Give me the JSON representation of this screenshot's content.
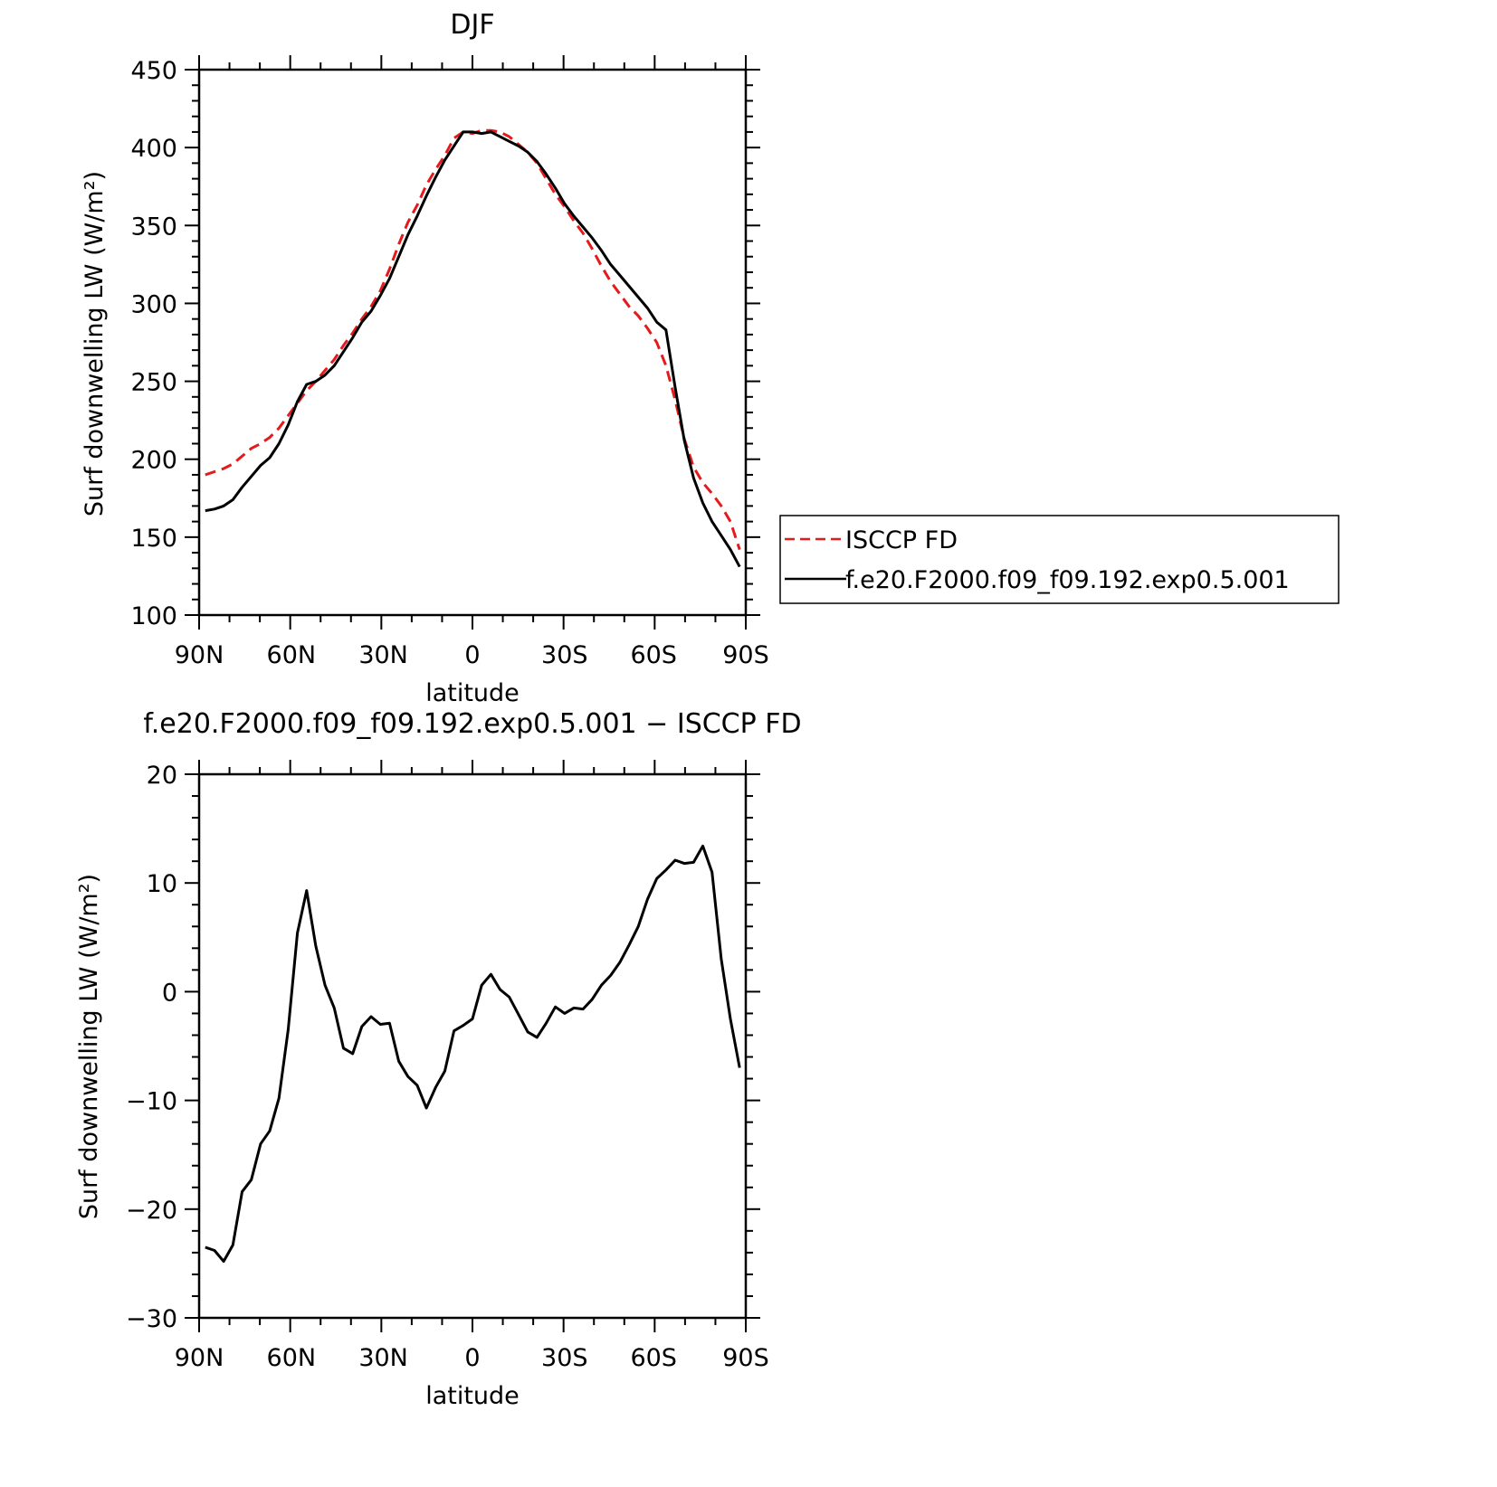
{
  "colors": {
    "isccp": "#e41a1c",
    "model": "#000000",
    "axis": "#000000"
  },
  "chart_data": [
    {
      "type": "line",
      "title": "DJF",
      "xlabel": "latitude",
      "ylabel": "Surf downwelling LW (W/m²)",
      "xlim": [
        -89,
        89
      ],
      "ylim": [
        100,
        450
      ],
      "yticks": [
        100,
        150,
        200,
        250,
        300,
        350,
        400,
        450
      ],
      "ytick_labels": [
        "100",
        "150",
        "200",
        "250",
        "300",
        "350",
        "400",
        "450"
      ],
      "xticks": [
        -89,
        -59,
        -29,
        0,
        30,
        59,
        89
      ],
      "xtick_labels": [
        "90N",
        "60N",
        "30N",
        "0",
        "30S",
        "60S",
        "90S"
      ],
      "legend": {
        "placement": "right",
        "entries": [
          "ISCCP FD",
          "f.e20.F2000.f09_f09.192.exp0.5.001"
        ]
      },
      "series": [
        {
          "name": "ISCCP FD",
          "style": "dashed",
          "color": "#e41a1c",
          "x": [
            -87,
            -84,
            -81,
            -78,
            -75,
            -72,
            -69,
            -66,
            -63,
            -60,
            -57,
            -54,
            -51,
            -48,
            -45,
            -42,
            -39,
            -36,
            -33,
            -30,
            -27,
            -24,
            -21,
            -18,
            -15,
            -12,
            -9,
            -6,
            -3,
            0,
            3,
            6,
            9,
            12,
            15,
            18,
            21,
            24,
            27,
            30,
            33,
            36,
            39,
            42,
            45,
            48,
            51,
            54,
            57,
            60,
            63,
            66,
            69,
            72,
            75,
            78,
            81,
            84,
            87
          ],
          "y": [
            190,
            192,
            194,
            197,
            202,
            207,
            210,
            214,
            220,
            228,
            236,
            244,
            250,
            257,
            264,
            273,
            281,
            290,
            298,
            308,
            322,
            338,
            352,
            363,
            376,
            386,
            395,
            406,
            410,
            409,
            411,
            411,
            410,
            407,
            402,
            397,
            390,
            380,
            370,
            362,
            353,
            345,
            335,
            324,
            314,
            306,
            298,
            292,
            284,
            275,
            260,
            238,
            213,
            195,
            185,
            178,
            170,
            160,
            142
          ]
        },
        {
          "name": "f.e20.F2000.f09_f09.192.exp0.5.001",
          "style": "solid",
          "color": "#000000",
          "x": [
            -87,
            -84,
            -81,
            -78,
            -75,
            -72,
            -69,
            -66,
            -63,
            -60,
            -57,
            -54,
            -51,
            -48,
            -45,
            -42,
            -39,
            -36,
            -33,
            -30,
            -27,
            -24,
            -21,
            -18,
            -15,
            -12,
            -9,
            -6,
            -3,
            0,
            3,
            6,
            9,
            12,
            15,
            18,
            21,
            24,
            27,
            30,
            33,
            36,
            39,
            42,
            45,
            48,
            51,
            54,
            57,
            60,
            63,
            66,
            69,
            72,
            75,
            78,
            81,
            84,
            87
          ],
          "y": [
            167,
            168,
            170,
            174,
            182,
            189,
            196,
            201,
            210,
            222,
            237,
            248,
            250,
            254,
            260,
            269,
            278,
            288,
            295,
            305,
            316,
            330,
            344,
            356,
            369,
            381,
            392,
            401,
            410,
            410,
            409,
            410,
            407,
            404,
            401,
            397,
            391,
            383,
            374,
            364,
            356,
            349,
            342,
            334,
            325,
            318,
            311,
            304,
            297,
            288,
            283,
            246,
            212,
            188,
            172,
            160,
            151,
            142,
            131
          ]
        }
      ]
    },
    {
      "type": "line",
      "title": "f.e20.F2000.f09_f09.192.exp0.5.001 − ISCCP FD",
      "xlabel": "latitude",
      "ylabel": "Surf downwelling LW (W/m²)",
      "xlim": [
        -89,
        89
      ],
      "ylim": [
        -30,
        20
      ],
      "yticks": [
        -30,
        -20,
        -10,
        0,
        10,
        20
      ],
      "ytick_labels": [
        "−30",
        "−20",
        "−10",
        "0",
        "10",
        "20"
      ],
      "xticks": [
        -89,
        -59,
        -29,
        0,
        30,
        59,
        89
      ],
      "xtick_labels": [
        "90N",
        "60N",
        "30N",
        "0",
        "30S",
        "60S",
        "90S"
      ],
      "series": [
        {
          "color": "#000000",
          "style": "solid",
          "x": [
            -87,
            -84,
            -81,
            -78,
            -75,
            -72,
            -69,
            -66,
            -63,
            -60,
            -57,
            -54,
            -51,
            -48,
            -45,
            -42,
            -39,
            -36,
            -33,
            -30,
            -27,
            -24,
            -21,
            -18,
            -15,
            -12,
            -9,
            -6,
            -3,
            0,
            3,
            6,
            9,
            12,
            15,
            18,
            21,
            24,
            27,
            30,
            33,
            36,
            39,
            42,
            45,
            48,
            51,
            54,
            57,
            60,
            63,
            66,
            69,
            72,
            75,
            78,
            81,
            84,
            87
          ],
          "y": [
            -23.5,
            -23.8,
            -24.8,
            -23.3,
            -18.4,
            -17.3,
            -14.0,
            -12.8,
            -9.8,
            -3.5,
            5.4,
            9.3,
            4.2,
            0.6,
            -1.5,
            -5.2,
            -5.7,
            -3.2,
            -2.3,
            -3.0,
            -2.9,
            -6.4,
            -7.8,
            -8.6,
            -10.7,
            -8.8,
            -7.3,
            -3.6,
            -3.1,
            -2.5,
            0.6,
            1.6,
            0.2,
            -0.5,
            -2.1,
            -3.7,
            -4.2,
            -2.9,
            -1.4,
            -2.0,
            -1.5,
            -1.6,
            -0.7,
            0.6,
            1.5,
            2.7,
            4.3,
            6.0,
            8.5,
            10.4,
            11.2,
            12.1,
            11.8,
            11.9,
            13.4,
            11.0,
            3.0,
            -2.5,
            -7.0
          ]
        }
      ]
    }
  ]
}
